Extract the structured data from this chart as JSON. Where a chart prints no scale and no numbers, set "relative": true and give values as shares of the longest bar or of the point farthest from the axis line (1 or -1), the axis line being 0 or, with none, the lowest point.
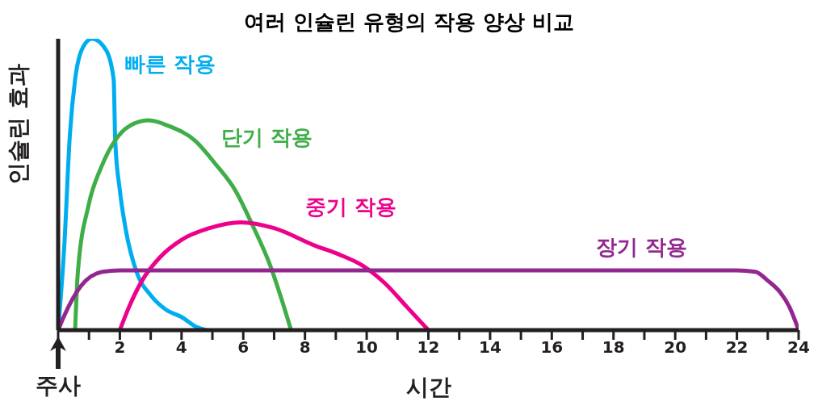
{
  "chart_data": {
    "type": "line",
    "title": "여러 인슐린 유형의 작용 양상 비교",
    "xlabel": "시간",
    "ylabel": "인슐린 효과",
    "relative": true,
    "xlim": [
      0,
      24
    ],
    "xticks": [
      {
        "value": 0,
        "label": null
      },
      {
        "value": 1,
        "label": null
      },
      2,
      {
        "value": 3,
        "label": null
      },
      4,
      {
        "value": 5,
        "label": null
      },
      6,
      {
        "value": 7,
        "label": null
      },
      8,
      {
        "value": 9,
        "label": null
      },
      10,
      {
        "value": 11,
        "label": null
      },
      12,
      {
        "value": 13,
        "label": null
      },
      14,
      {
        "value": 15,
        "label": null
      },
      16,
      {
        "value": 17,
        "label": null
      },
      18,
      {
        "value": 19,
        "label": null
      },
      20,
      {
        "value": 21,
        "label": null
      },
      22,
      {
        "value": 23,
        "label": null
      },
      24
    ],
    "annotations": [
      "주사"
    ],
    "series": [
      {
        "name": "빠른 작용",
        "color": "#00aeef",
        "x": [
          0,
          0.2,
          0.38,
          0.55,
          0.8,
          1.1,
          1.56,
          1.8,
          1.85,
          2.0,
          2.2,
          2.54,
          3.0,
          3.5,
          4.0,
          4.5,
          4.8
        ],
        "values": [
          0,
          0.29,
          0.67,
          0.86,
          0.97,
          1,
          0.96,
          0.86,
          0.65,
          0.48,
          0.34,
          0.2,
          0.12,
          0.07,
          0.045,
          0.01,
          0
        ]
      },
      {
        "name": "단기 작용",
        "color": "#3fae49",
        "x": [
          0.55,
          0.64,
          0.99,
          1.4,
          1.84,
          2.3,
          2.93,
          3.6,
          4.44,
          5.1,
          5.74,
          6.3,
          6.88,
          7.2,
          7.55
        ],
        "values": [
          0,
          0.2,
          0.43,
          0.56,
          0.65,
          0.7,
          0.72,
          0.7,
          0.65,
          0.57,
          0.48,
          0.36,
          0.22,
          0.12,
          0
        ]
      },
      {
        "name": "중기 작용",
        "color": "#ec008c",
        "x": [
          2,
          2.3,
          2.72,
          3.3,
          4.0,
          4.9,
          5.92,
          7.0,
          8.33,
          9.1,
          9.89,
          10.6,
          11.3,
          12
        ],
        "values": [
          0,
          0.08,
          0.17,
          0.25,
          0.31,
          0.35,
          0.37,
          0.35,
          0.29,
          0.26,
          0.22,
          0.16,
          0.08,
          0
        ]
      },
      {
        "name": "장기 작용",
        "color": "#92278f",
        "x": [
          0,
          0.2,
          0.73,
          1.43,
          2.0,
          22,
          22.6,
          23,
          23.4,
          23.7,
          24
        ],
        "values": [
          0,
          0.05,
          0.15,
          0.2,
          0.205,
          0.205,
          0.2,
          0.17,
          0.13,
          0.08,
          0
        ]
      }
    ]
  }
}
